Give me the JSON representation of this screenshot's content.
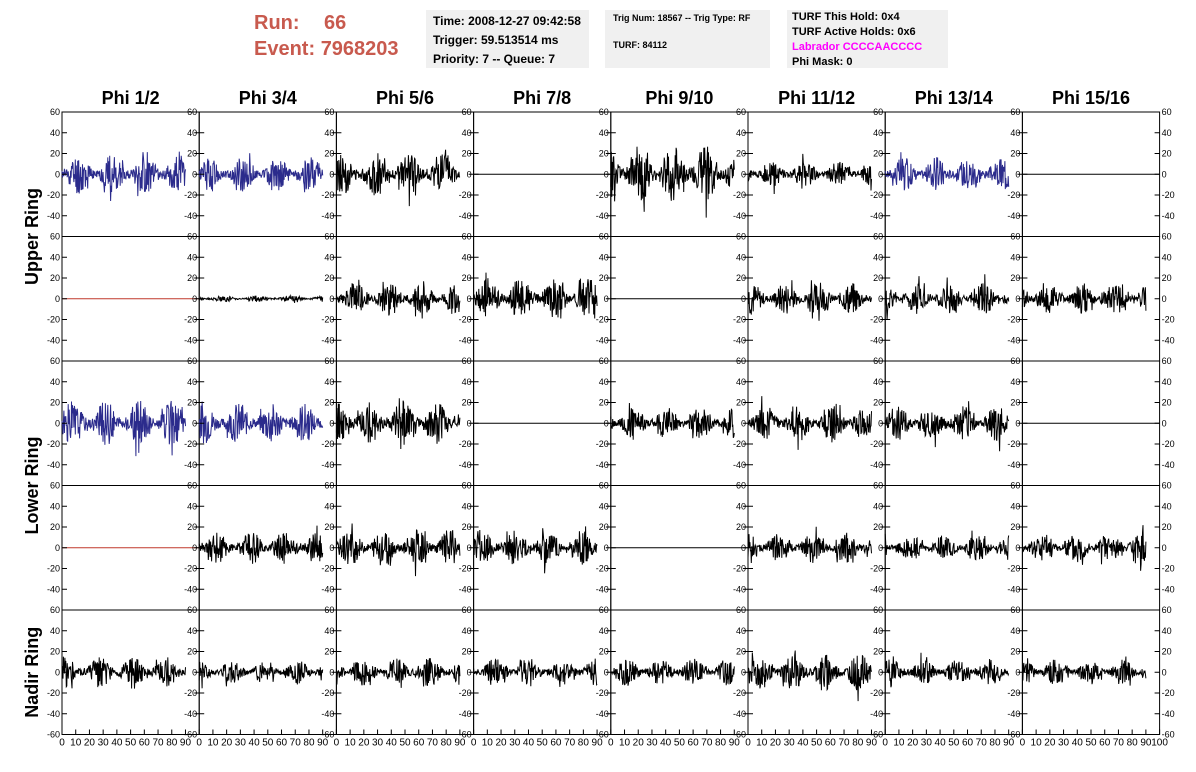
{
  "header": {
    "run_label": "Run:",
    "run_value": "66",
    "event_label": "Event:",
    "event_value": "7968203",
    "time": "Time: 2008-12-27 09:42:58",
    "trigger": "Trigger: 59.513514 ms",
    "priority": "Priority: 7 -- Queue: 7",
    "trig_num": "Trig Num: 18567 -- Trig Type: RF",
    "turf": "TURF: 84112",
    "turf_this_hold": "TURF This Hold: 0x4",
    "turf_active_holds": "TURF Active Holds: 0x6",
    "labrador": "Labrador CCCCAACCCC",
    "phi_mask": "Phi Mask: 0"
  },
  "colors": {
    "run_text": "#c85a4e",
    "info_bg": "#f0f0f0",
    "labrador": "#ff00ff",
    "trace_black": "#000000",
    "trace_blue": "#2b2b8c",
    "trace_red": "#c0392b"
  },
  "chart_data": {
    "type": "line",
    "column_titles": [
      "Phi 1/2",
      "Phi 3/4",
      "Phi 5/6",
      "Phi 7/8",
      "Phi 9/10",
      "Phi 11/12",
      "Phi 13/14",
      "Phi 15/16"
    ],
    "ring_labels": [
      "Upper Ring",
      "Lower Ring",
      "Nadir Ring"
    ],
    "xlim": [
      0,
      100
    ],
    "ylim": [
      -60,
      60
    ],
    "x_ticks": [
      0,
      10,
      20,
      30,
      40,
      50,
      60,
      70,
      80,
      90
    ],
    "last_x_ticks": [
      0,
      10,
      20,
      30,
      40,
      50,
      60,
      70,
      80,
      90,
      100
    ],
    "y_ticks": [
      60,
      40,
      20,
      0,
      -20,
      -40
    ],
    "bottom_y_ticks": [
      60,
      40,
      20,
      0,
      -20,
      -40,
      -60
    ],
    "grid": false,
    "legend": "none",
    "panels": [
      [
        {
          "color": "blue",
          "amp": 20,
          "seed": 11
        },
        {
          "color": "blue",
          "amp": 17,
          "seed": 12
        },
        {
          "color": "black",
          "amp": 20,
          "seed": 13
        },
        {
          "color": "black",
          "amp": 0,
          "seed": 14
        },
        {
          "color": "black",
          "amp": 28,
          "seed": 15
        },
        {
          "color": "black",
          "amp": 13,
          "seed": 16
        },
        {
          "color": "blue",
          "amp": 17,
          "seed": 17
        },
        {
          "color": "black",
          "amp": 0,
          "seed": 18
        }
      ],
      [
        {
          "color": "red",
          "amp": 0,
          "seed": 21
        },
        {
          "color": "black",
          "amp": 3,
          "seed": 22
        },
        {
          "color": "black",
          "amp": 17,
          "seed": 23
        },
        {
          "color": "black",
          "amp": 20,
          "seed": 24
        },
        {
          "color": "black",
          "amp": 0,
          "seed": 25
        },
        {
          "color": "black",
          "amp": 16,
          "seed": 26
        },
        {
          "color": "black",
          "amp": 15,
          "seed": 27
        },
        {
          "color": "black",
          "amp": 15,
          "seed": 28
        }
      ],
      [
        {
          "color": "blue",
          "amp": 22,
          "seed": 31
        },
        {
          "color": "blue",
          "amp": 20,
          "seed": 32
        },
        {
          "color": "black",
          "amp": 22,
          "seed": 33
        },
        {
          "color": "black",
          "amp": 0,
          "seed": 34
        },
        {
          "color": "black",
          "amp": 16,
          "seed": 35
        },
        {
          "color": "black",
          "amp": 18,
          "seed": 36
        },
        {
          "color": "black",
          "amp": 18,
          "seed": 37
        },
        {
          "color": "black",
          "amp": 0,
          "seed": 38
        }
      ],
      [
        {
          "color": "red",
          "amp": 0,
          "seed": 41
        },
        {
          "color": "black",
          "amp": 16,
          "seed": 42
        },
        {
          "color": "black",
          "amp": 18,
          "seed": 43
        },
        {
          "color": "black",
          "amp": 18,
          "seed": 44
        },
        {
          "color": "black",
          "amp": 0,
          "seed": 45
        },
        {
          "color": "black",
          "amp": 15,
          "seed": 46
        },
        {
          "color": "black",
          "amp": 13,
          "seed": 47
        },
        {
          "color": "black",
          "amp": 16,
          "seed": 48
        }
      ],
      [
        {
          "color": "black",
          "amp": 16,
          "seed": 51
        },
        {
          "color": "black",
          "amp": 12,
          "seed": 52
        },
        {
          "color": "black",
          "amp": 14,
          "seed": 53
        },
        {
          "color": "black",
          "amp": 14,
          "seed": 54
        },
        {
          "color": "black",
          "amp": 13,
          "seed": 55
        },
        {
          "color": "black",
          "amp": 18,
          "seed": 56
        },
        {
          "color": "black",
          "amp": 13,
          "seed": 57
        },
        {
          "color": "black",
          "amp": 13,
          "seed": 58
        }
      ]
    ]
  }
}
